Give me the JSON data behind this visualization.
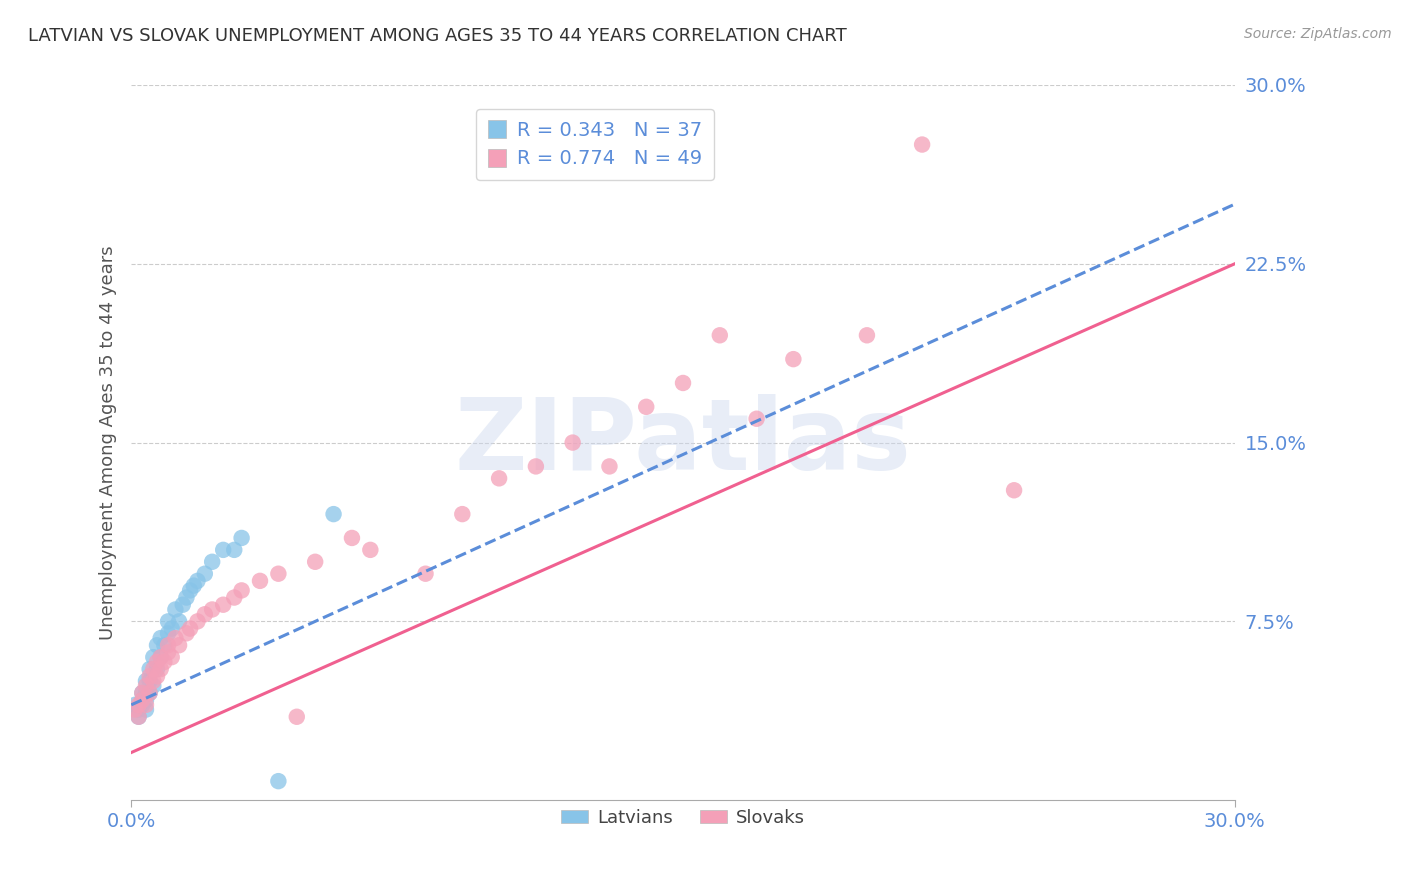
{
  "title": "LATVIAN VS SLOVAK UNEMPLOYMENT AMONG AGES 35 TO 44 YEARS CORRELATION CHART",
  "source": "Source: ZipAtlas.com",
  "ylabel": "Unemployment Among Ages 35 to 44 years",
  "xlim": [
    0.0,
    0.3
  ],
  "ylim": [
    0.0,
    0.3
  ],
  "xticks": [
    0.0,
    0.3
  ],
  "yticks": [
    0.075,
    0.15,
    0.225,
    0.3
  ],
  "xtick_labels": [
    "0.0%",
    "30.0%"
  ],
  "ytick_labels": [
    "7.5%",
    "15.0%",
    "22.5%",
    "30.0%"
  ],
  "latvian_color": "#88c4e8",
  "slovak_color": "#f4a0b8",
  "latvian_line_color": "#5b8dd9",
  "latvian_line_dash": true,
  "slovak_line_color": "#f06090",
  "slovak_line_dash": false,
  "R_latvian": 0.343,
  "N_latvian": 37,
  "R_slovak": 0.774,
  "N_slovak": 49,
  "watermark": "ZIPatlas",
  "latvian_x": [
    0.001,
    0.002,
    0.002,
    0.003,
    0.003,
    0.003,
    0.004,
    0.004,
    0.004,
    0.004,
    0.005,
    0.005,
    0.005,
    0.006,
    0.006,
    0.007,
    0.007,
    0.008,
    0.008,
    0.009,
    0.01,
    0.01,
    0.011,
    0.012,
    0.013,
    0.014,
    0.015,
    0.016,
    0.017,
    0.018,
    0.02,
    0.022,
    0.025,
    0.028,
    0.03,
    0.04,
    0.055
  ],
  "latvian_y": [
    0.04,
    0.035,
    0.038,
    0.042,
    0.04,
    0.045,
    0.038,
    0.042,
    0.045,
    0.05,
    0.045,
    0.05,
    0.055,
    0.048,
    0.06,
    0.055,
    0.065,
    0.06,
    0.068,
    0.065,
    0.07,
    0.075,
    0.072,
    0.08,
    0.075,
    0.082,
    0.085,
    0.088,
    0.09,
    0.092,
    0.095,
    0.1,
    0.105,
    0.105,
    0.11,
    0.008,
    0.12
  ],
  "slovak_x": [
    0.001,
    0.002,
    0.002,
    0.003,
    0.003,
    0.004,
    0.004,
    0.005,
    0.005,
    0.006,
    0.006,
    0.007,
    0.007,
    0.008,
    0.008,
    0.009,
    0.01,
    0.01,
    0.011,
    0.012,
    0.013,
    0.015,
    0.016,
    0.018,
    0.02,
    0.022,
    0.025,
    0.028,
    0.03,
    0.035,
    0.04,
    0.045,
    0.05,
    0.06,
    0.065,
    0.08,
    0.09,
    0.1,
    0.11,
    0.12,
    0.13,
    0.14,
    0.15,
    0.16,
    0.17,
    0.18,
    0.2,
    0.215,
    0.24
  ],
  "slovak_y": [
    0.038,
    0.035,
    0.04,
    0.042,
    0.045,
    0.04,
    0.048,
    0.045,
    0.052,
    0.05,
    0.055,
    0.052,
    0.058,
    0.055,
    0.06,
    0.058,
    0.062,
    0.065,
    0.06,
    0.068,
    0.065,
    0.07,
    0.072,
    0.075,
    0.078,
    0.08,
    0.082,
    0.085,
    0.088,
    0.092,
    0.095,
    0.035,
    0.1,
    0.11,
    0.105,
    0.095,
    0.12,
    0.135,
    0.14,
    0.15,
    0.14,
    0.165,
    0.175,
    0.195,
    0.16,
    0.185,
    0.195,
    0.275,
    0.13
  ]
}
